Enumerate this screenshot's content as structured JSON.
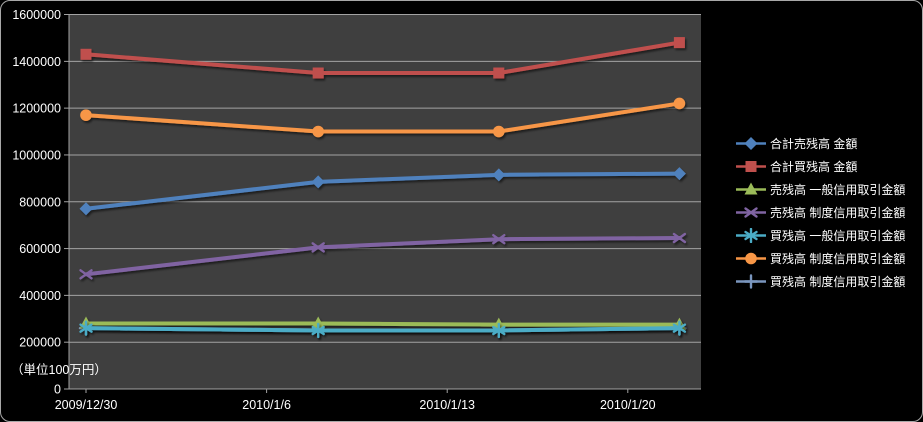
{
  "window": {
    "background_color": "#000000",
    "border_color": "#A8A8A8"
  },
  "chart_data": {
    "type": "line",
    "title": "",
    "unit_note": "（単位100万円）",
    "plot_bg": "#3F3F3F",
    "grid_color": "#A3A3A3",
    "axis_text_color": "#FFFFFF",
    "grid": true,
    "legend_position": "right",
    "ylim": [
      0,
      1600000
    ],
    "y_tick_step": 200000,
    "y_tick_labels": [
      "0",
      "200000",
      "400000",
      "600000",
      "800000",
      "1000000",
      "1200000",
      "1400000",
      "1600000"
    ],
    "x_tick_labels": [
      "2009/12/30",
      "2010/1/6",
      "2010/1/13",
      "2010/1/20"
    ],
    "x_tick_days": [
      0,
      7,
      14,
      21
    ],
    "x_data_labels": [
      "2009/12/30",
      "2010/1/8",
      "2010/1/15",
      "2010/1/22"
    ],
    "x_data_days": [
      0,
      9,
      16,
      23
    ],
    "draw_order": [
      6,
      0,
      1,
      2,
      3,
      4,
      5
    ],
    "series": [
      {
        "name": "合計売残高 金額",
        "marker": "diamond",
        "color": "#4F81BD",
        "values": [
          770000,
          885000,
          915000,
          920000
        ]
      },
      {
        "name": "合計買残高 金額",
        "marker": "square",
        "color": "#C0504D",
        "values": [
          1430000,
          1350000,
          1350000,
          1480000
        ]
      },
      {
        "name": "売残高 一般信用取引金額",
        "marker": "triangle",
        "color": "#9BBB59",
        "values": [
          280000,
          280000,
          275000,
          275000
        ]
      },
      {
        "name": "売残高 制度信用取引金額",
        "marker": "x",
        "color": "#8064A2",
        "values": [
          490000,
          605000,
          640000,
          645000
        ]
      },
      {
        "name": "買残高 一般信用取引金額",
        "marker": "asterisk",
        "color": "#4BACC6",
        "values": [
          260000,
          250000,
          250000,
          260000
        ]
      },
      {
        "name": "買残高 制度信用取引金額",
        "marker": "circle",
        "color": "#F79646",
        "values": [
          1170000,
          1100000,
          1100000,
          1220000
        ]
      },
      {
        "name": "買残高 制度信用取引金額",
        "marker": "plus",
        "color": "#7A96BE",
        "values": [
          260000,
          250000,
          250000,
          260000
        ]
      }
    ]
  }
}
